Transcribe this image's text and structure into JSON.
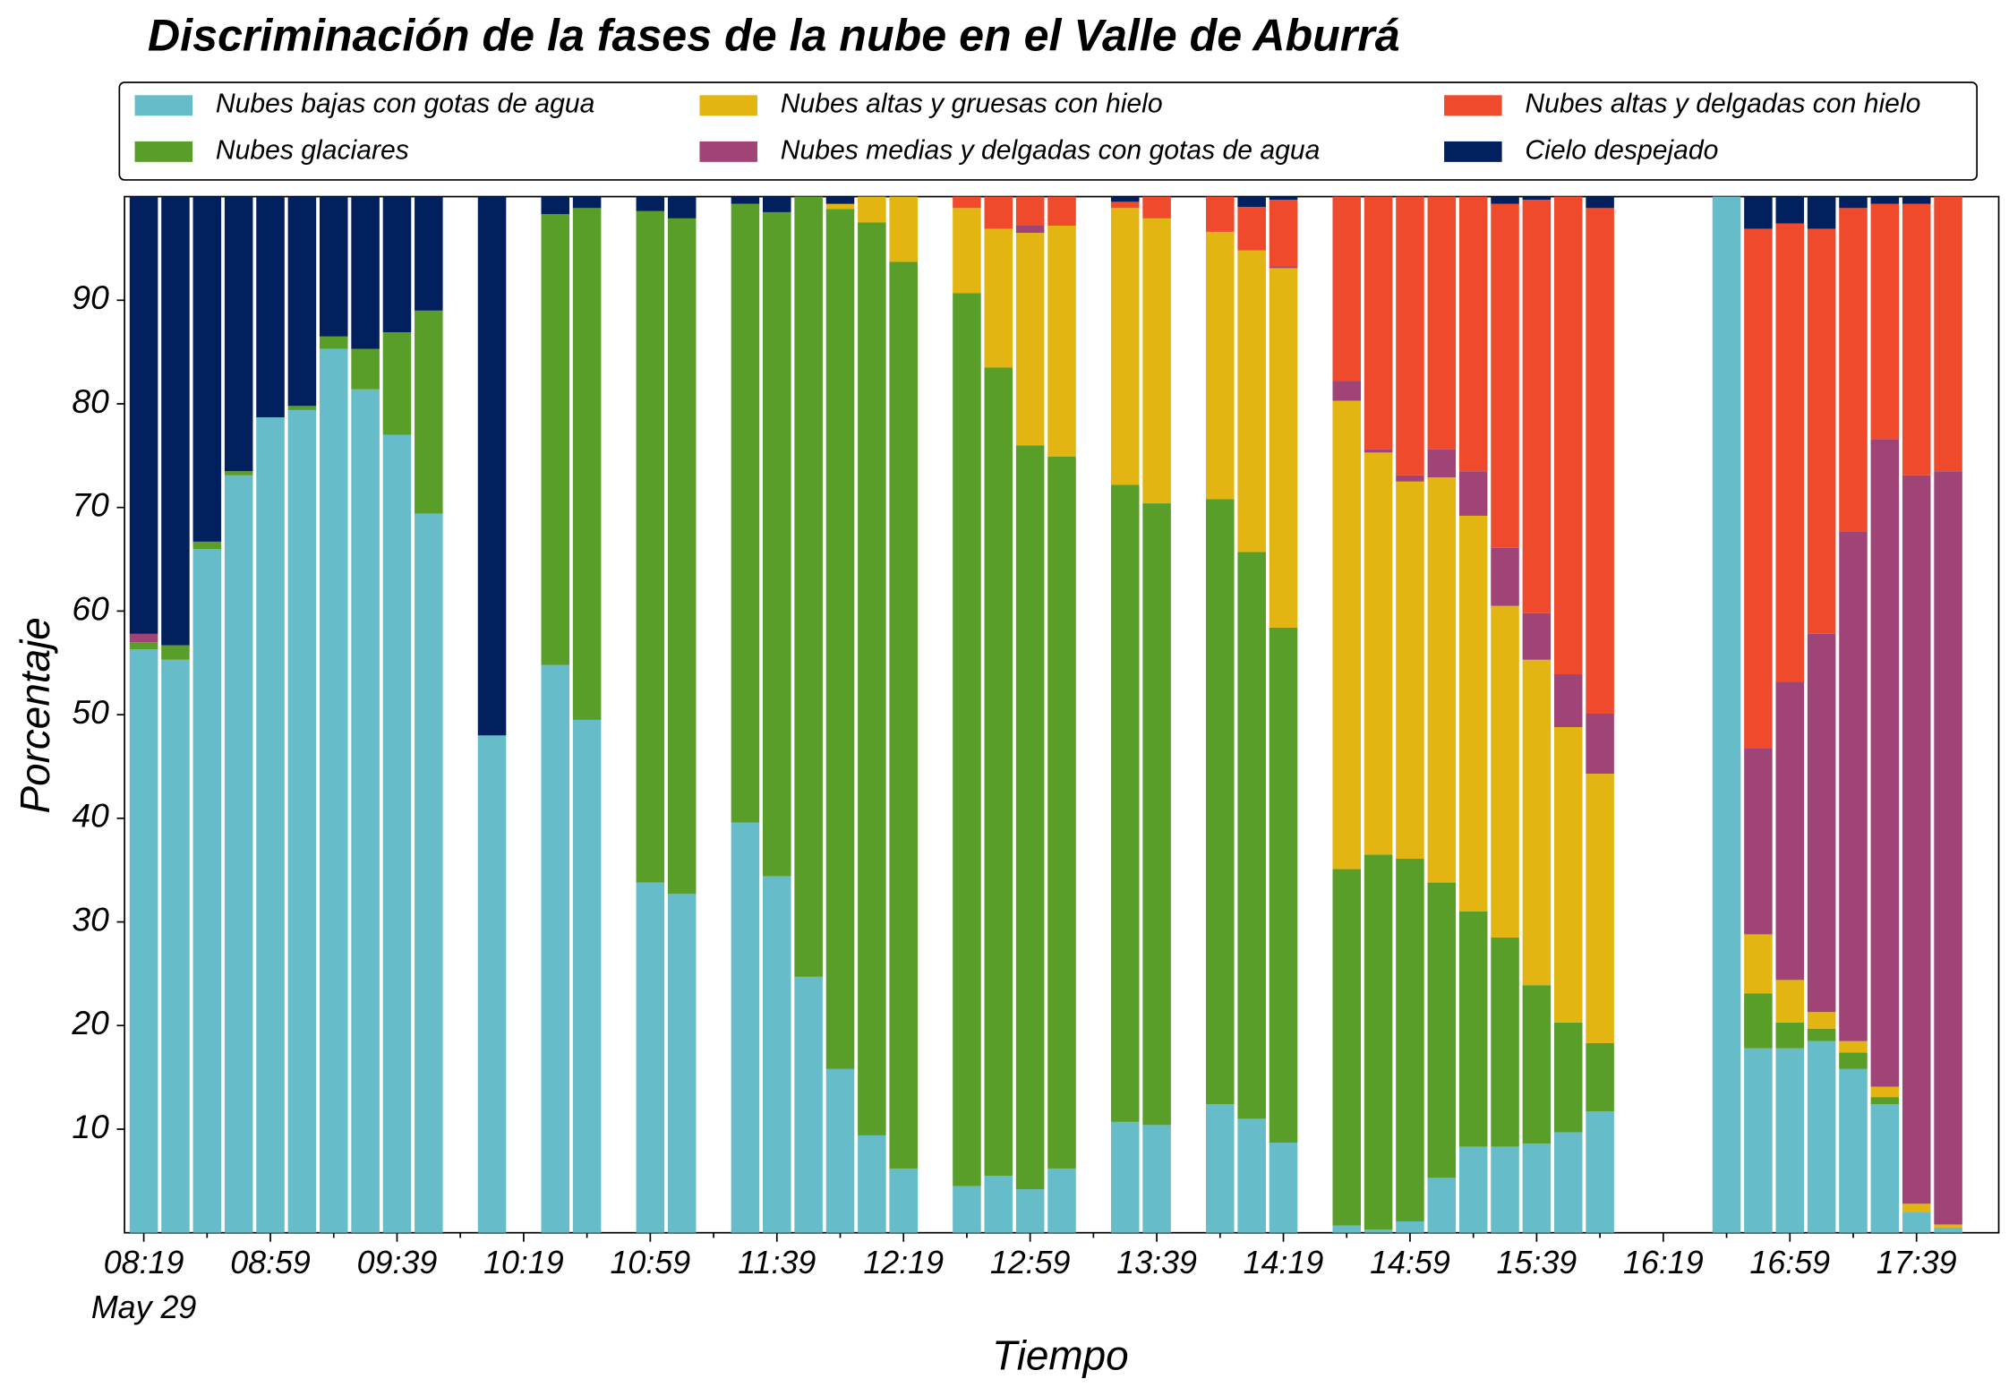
{
  "chart_data": {
    "type": "stacked_bar",
    "title": "Discriminación de la fases de la nube en el Valle de Aburrá",
    "x_label": "Tiempo",
    "y_label": "Porcentaje",
    "x_sublabel": "May 29",
    "categories": [
      "08:19",
      null,
      null,
      null,
      "08:59",
      null,
      null,
      null,
      "09:39",
      null,
      null,
      null,
      "10:19",
      null,
      null,
      null,
      "10:59",
      null,
      null,
      null,
      "11:39",
      null,
      null,
      null,
      "12:19",
      null,
      null,
      null,
      "12:59",
      null,
      null,
      null,
      "13:39",
      null,
      null,
      null,
      "14:19",
      null,
      null,
      null,
      "14:59",
      null,
      null,
      null,
      "15:39",
      null,
      null,
      null,
      "16:19",
      null,
      null,
      null,
      "16:59",
      null,
      null,
      null,
      "17:39",
      null
    ],
    "ylim": [
      0,
      100
    ],
    "yticks": [
      10,
      20,
      30,
      40,
      50,
      60,
      70,
      80,
      90
    ],
    "legend": "top",
    "series": [
      {
        "name": "Nubes bajas con gotas de agua",
        "color": "#66bdc9",
        "values": [
          56.3,
          55.3,
          66.0,
          73.1,
          78.7,
          79.4,
          85.3,
          81.4,
          77.0,
          69.4,
          null,
          48.0,
          null,
          54.8,
          49.5,
          null,
          33.8,
          32.7,
          null,
          39.6,
          34.4,
          24.7,
          15.8,
          9.4,
          6.2,
          null,
          4.5,
          5.5,
          4.2,
          6.2,
          null,
          10.7,
          10.4,
          null,
          12.4,
          11.0,
          8.7,
          null,
          0.7,
          0.3,
          1.1,
          5.3,
          8.3,
          8.3,
          8.6,
          9.7,
          11.7,
          null,
          null,
          null,
          100,
          17.8,
          17.8,
          18.5,
          15.8,
          12.4,
          2.0,
          0.5
        ]
      },
      {
        "name": "Nubes glaciares",
        "color": "#5a9e2a",
        "values": [
          0.7,
          1.4,
          0.7,
          0.4,
          0,
          0.4,
          1.2,
          3.9,
          9.9,
          19.6,
          null,
          0,
          null,
          43.5,
          49.4,
          null,
          64.8,
          65.2,
          null,
          59.7,
          64.1,
          75.3,
          83.0,
          88.1,
          87.5,
          null,
          86.2,
          78.0,
          71.8,
          68.7,
          null,
          61.5,
          60.0,
          null,
          58.4,
          54.7,
          49.7,
          null,
          34.4,
          36.2,
          35.0,
          28.5,
          22.7,
          20.2,
          15.3,
          10.6,
          6.6,
          null,
          null,
          null,
          0,
          5.3,
          2.5,
          1.2,
          1.6,
          0.7,
          0,
          0
        ]
      },
      {
        "name": "Nubes altas y gruesas con hielo",
        "color": "#e3b513",
        "values": [
          0,
          0,
          0,
          0,
          0,
          0,
          0,
          0,
          0,
          0,
          null,
          0,
          null,
          0,
          0,
          null,
          0,
          0,
          null,
          0,
          0,
          0,
          0.5,
          2.5,
          6.3,
          null,
          8.2,
          13.4,
          20.5,
          22.3,
          null,
          26.7,
          27.5,
          null,
          25.8,
          29.1,
          34.7,
          null,
          45.2,
          38.8,
          36.4,
          39.1,
          38.2,
          32.0,
          31.4,
          28.5,
          26.0,
          null,
          null,
          null,
          0,
          5.7,
          4.1,
          1.6,
          1.1,
          1.0,
          0.8,
          0.3
        ]
      },
      {
        "name": "Nubes medias y delgadas con gotas de agua",
        "color": "#a04478",
        "values": [
          0.8,
          0,
          0,
          0,
          0,
          0,
          0,
          0,
          0,
          0,
          null,
          0,
          null,
          0,
          0,
          null,
          0,
          0,
          null,
          0,
          0,
          0,
          0,
          0,
          0,
          null,
          0,
          0,
          0.7,
          0,
          null,
          0,
          0,
          null,
          0,
          0,
          0.2,
          null,
          1.9,
          0.3,
          0.6,
          2.7,
          4.3,
          5.6,
          4.5,
          5.1,
          5.8,
          null,
          null,
          null,
          0,
          18.0,
          28.8,
          36.5,
          49.2,
          62.5,
          70.3,
          72.7
        ]
      },
      {
        "name": "Nubes altas y delgadas con hielo",
        "color": "#ee4a2b",
        "values": [
          0,
          0,
          0,
          0,
          0,
          0,
          0,
          0,
          0,
          0,
          null,
          0,
          null,
          0,
          0,
          null,
          0,
          0,
          null,
          0,
          0,
          0,
          0,
          0,
          0,
          null,
          1.1,
          3.1,
          2.8,
          2.8,
          null,
          0.6,
          2.1,
          null,
          3.4,
          4.2,
          6.4,
          null,
          17.8,
          24.4,
          26.9,
          24.4,
          26.5,
          33.2,
          39.9,
          46.1,
          48.8,
          null,
          null,
          null,
          0,
          50.1,
          44.2,
          39.1,
          31.2,
          22.7,
          26.2,
          26.5
        ]
      },
      {
        "name": "Cielo despejado",
        "color": "#03205e",
        "values": [
          42.2,
          43.3,
          33.3,
          26.5,
          21.3,
          20.2,
          13.5,
          14.7,
          13.1,
          11.0,
          null,
          52.0,
          null,
          1.7,
          1.1,
          null,
          1.4,
          2.1,
          null,
          0.7,
          1.5,
          0,
          0.7,
          0,
          0,
          null,
          0,
          0,
          0,
          0,
          null,
          0.5,
          0,
          null,
          0,
          1.0,
          0.3,
          null,
          0,
          0,
          0,
          0,
          0,
          0.7,
          0.3,
          0,
          1.1,
          null,
          null,
          null,
          0,
          3.1,
          2.6,
          3.1,
          1.1,
          0.7,
          0.7,
          0
        ]
      }
    ]
  }
}
